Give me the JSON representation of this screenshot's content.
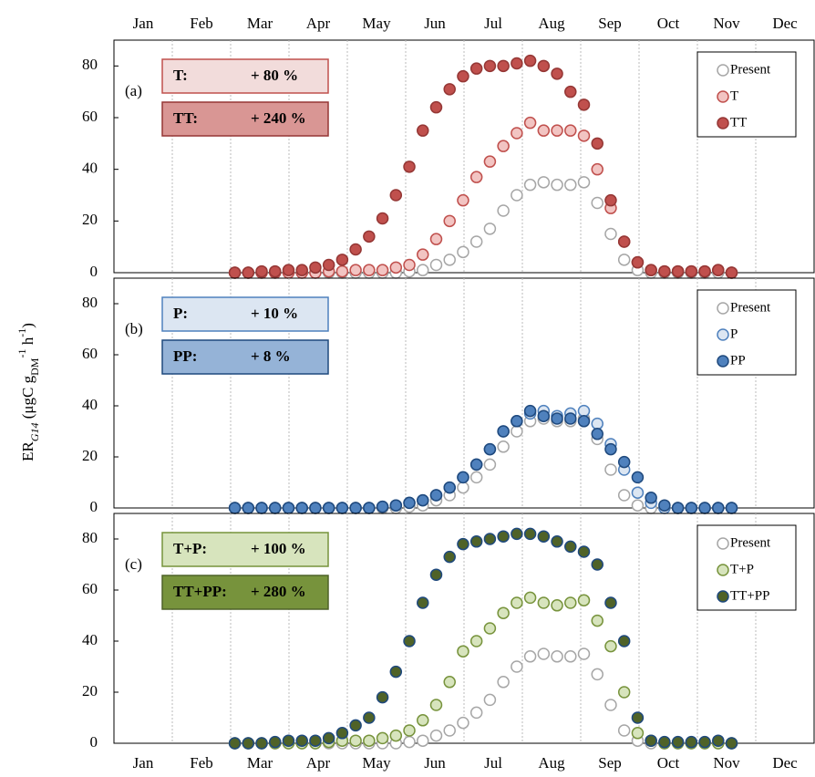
{
  "chart_data": [
    {
      "type": "scatter",
      "panel_label": "(a)",
      "categories": [
        "Jan",
        "Feb",
        "Mar",
        "Apr",
        "May",
        "Jun",
        "Jul",
        "Aug",
        "Sep",
        "Oct",
        "Nov",
        "Dec"
      ],
      "xlim": [
        0,
        365
      ],
      "ylim": [
        0,
        90
      ],
      "yticks": [
        0,
        20,
        40,
        60,
        80
      ],
      "x": [
        63,
        70,
        77,
        84,
        91,
        98,
        105,
        112,
        119,
        126,
        133,
        140,
        147,
        154,
        161,
        168,
        175,
        182,
        189,
        196,
        203,
        210,
        217,
        224,
        231,
        238,
        245,
        252,
        259,
        266,
        273,
        280,
        287,
        294,
        301,
        308,
        315,
        322
      ],
      "annotations": [
        {
          "label": "T:",
          "text": "+ 80 %",
          "color": "#f2dcdb",
          "edgecolor": "#c0504d"
        },
        {
          "label": "TT:",
          "text": "+ 240 %",
          "color": "#d99694",
          "edgecolor": "#953735"
        }
      ],
      "series": [
        {
          "name": "Present",
          "color": "#ffffff",
          "edgecolor": "#a6a6a6",
          "values": [
            0,
            0,
            0,
            0,
            0,
            0,
            0,
            0,
            0,
            0,
            0,
            0,
            0,
            0.5,
            1,
            3,
            5,
            8,
            12,
            17,
            24,
            30,
            34,
            35,
            34,
            34,
            35,
            27,
            15,
            5,
            1,
            0,
            0,
            0,
            0,
            0,
            0,
            0
          ]
        },
        {
          "name": "T",
          "color": "#f2c4c2",
          "edgecolor": "#c0504d",
          "values": [
            0,
            0,
            0,
            0,
            0,
            0,
            0,
            0.5,
            0.5,
            1,
            1,
            1,
            2,
            3,
            7,
            13,
            20,
            28,
            37,
            43,
            49,
            54,
            58,
            55,
            55,
            55,
            53,
            40,
            25,
            12,
            4,
            1,
            0.5,
            0.5,
            0.5,
            0.5,
            1,
            0
          ]
        },
        {
          "name": "TT",
          "color": "#c0504d",
          "edgecolor": "#953735",
          "values": [
            0,
            0,
            0.5,
            0.5,
            1,
            1,
            2,
            3,
            5,
            9,
            14,
            21,
            30,
            41,
            55,
            64,
            71,
            76,
            79,
            80,
            80,
            81,
            82,
            80,
            77,
            70,
            65,
            50,
            28,
            12,
            4,
            1,
            0.5,
            0.5,
            0.5,
            0.5,
            1,
            0
          ]
        }
      ]
    },
    {
      "type": "scatter",
      "panel_label": "(b)",
      "ylabel_parts": [
        "ER",
        "G14",
        " (μgC g",
        "DM",
        "-1",
        " h",
        "-1",
        ")"
      ],
      "xlim": [
        0,
        365
      ],
      "ylim": [
        0,
        90
      ],
      "yticks": [
        0,
        20,
        40,
        60,
        80
      ],
      "x": [
        63,
        70,
        77,
        84,
        91,
        98,
        105,
        112,
        119,
        126,
        133,
        140,
        147,
        154,
        161,
        168,
        175,
        182,
        189,
        196,
        203,
        210,
        217,
        224,
        231,
        238,
        245,
        252,
        259,
        266,
        273,
        280,
        287,
        294,
        301,
        308,
        315,
        322
      ],
      "annotations": [
        {
          "label": "P:",
          "text": "+ 10 %",
          "color": "#dce6f2",
          "edgecolor": "#4f81bd"
        },
        {
          "label": "PP:",
          "text": "+ 8 %",
          "color": "#95b3d7",
          "edgecolor": "#1f497d"
        }
      ],
      "series": [
        {
          "name": "Present",
          "color": "#ffffff",
          "edgecolor": "#a6a6a6",
          "values": [
            0,
            0,
            0,
            0,
            0,
            0,
            0,
            0,
            0,
            0,
            0,
            0,
            0,
            0.5,
            1,
            3,
            5,
            8,
            12,
            17,
            24,
            30,
            34,
            35,
            34,
            34,
            35,
            27,
            15,
            5,
            1,
            0,
            0,
            0,
            0,
            0,
            0,
            0
          ]
        },
        {
          "name": "P",
          "color": "#dce6f2",
          "edgecolor": "#4f81bd",
          "values": [
            0,
            0,
            0,
            0,
            0,
            0,
            0,
            0,
            0,
            0,
            0,
            0.5,
            1,
            2,
            3,
            5,
            8,
            12,
            17,
            23,
            30,
            34,
            37,
            38,
            36,
            37,
            38,
            33,
            25,
            15,
            6,
            2,
            0,
            0,
            0,
            0,
            0,
            0
          ]
        },
        {
          "name": "PP",
          "color": "#4f81bd",
          "edgecolor": "#1f497d",
          "values": [
            0,
            0,
            0,
            0,
            0,
            0,
            0,
            0,
            0,
            0,
            0,
            0.5,
            1,
            2,
            3,
            5,
            8,
            12,
            17,
            23,
            30,
            34,
            38,
            36,
            35,
            35,
            34,
            29,
            23,
            18,
            12,
            4,
            1,
            0,
            0,
            0,
            0,
            0
          ]
        }
      ]
    },
    {
      "type": "scatter",
      "panel_label": "(c)",
      "categories": [
        "Jan",
        "Feb",
        "Mar",
        "Apr",
        "May",
        "Jun",
        "Jul",
        "Aug",
        "Sep",
        "Oct",
        "Nov",
        "Dec"
      ],
      "xlim": [
        0,
        365
      ],
      "ylim": [
        0,
        90
      ],
      "yticks": [
        0,
        20,
        40,
        60,
        80
      ],
      "x": [
        63,
        70,
        77,
        84,
        91,
        98,
        105,
        112,
        119,
        126,
        133,
        140,
        147,
        154,
        161,
        168,
        175,
        182,
        189,
        196,
        203,
        210,
        217,
        224,
        231,
        238,
        245,
        252,
        259,
        266,
        273,
        280,
        287,
        294,
        301,
        308,
        315,
        322
      ],
      "annotations": [
        {
          "label": "T+P:",
          "text": "+ 100 %",
          "color": "#d7e4bd",
          "edgecolor": "#77933c"
        },
        {
          "label": "TT+PP:",
          "text": "+ 280 %",
          "color": "#77933c",
          "edgecolor": "#4f6228"
        }
      ],
      "series": [
        {
          "name": "Present",
          "color": "#ffffff",
          "edgecolor": "#a6a6a6",
          "values": [
            0,
            0,
            0,
            0,
            0,
            0,
            0,
            0,
            0,
            0,
            0,
            0,
            0,
            0.5,
            1,
            3,
            5,
            8,
            12,
            17,
            24,
            30,
            34,
            35,
            34,
            34,
            35,
            27,
            15,
            5,
            1,
            0,
            0,
            0,
            0,
            0,
            0,
            0
          ]
        },
        {
          "name": "T+P",
          "color": "#d7e4bd",
          "edgecolor": "#77933c",
          "values": [
            0,
            0,
            0,
            0,
            0,
            0,
            0,
            0.5,
            1,
            1,
            1,
            2,
            3,
            5,
            9,
            15,
            24,
            36,
            40,
            45,
            51,
            55,
            57,
            55,
            54,
            55,
            56,
            48,
            38,
            20,
            4,
            1,
            0,
            0,
            0,
            0,
            0,
            0
          ]
        },
        {
          "name": "TT+PP",
          "color": "#4f6228",
          "edgecolor": "#1f497d",
          "values": [
            0,
            0,
            0,
            0.5,
            1,
            1,
            1,
            2,
            4,
            7,
            10,
            18,
            28,
            40,
            55,
            66,
            73,
            78,
            79,
            80,
            81,
            82,
            82,
            81,
            79,
            77,
            75,
            70,
            55,
            40,
            10,
            1,
            0.5,
            0.5,
            0.5,
            0.5,
            1,
            0
          ]
        }
      ]
    }
  ]
}
